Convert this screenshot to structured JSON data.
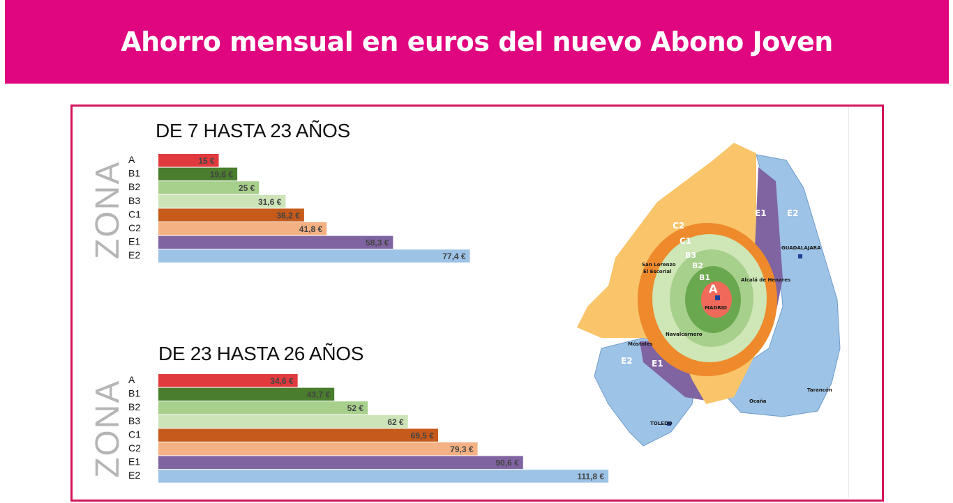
{
  "header": {
    "title": "Ahorro mensual en euros del nuevo Abono Joven"
  },
  "colors": {
    "header_bg": "#e0067f",
    "frame": "#d4145a",
    "A": "#e03a3e",
    "B1": "#4a7d2e",
    "B2": "#a7d08c",
    "B3": "#cce4b8",
    "C1": "#c55a1a",
    "C2": "#f4b183",
    "E1": "#8064a2",
    "E2": "#9dc3e6"
  },
  "charts_text": {
    "zona_label": "ZONA"
  },
  "chart_data": [
    {
      "type": "bar",
      "orientation": "horizontal",
      "title": "DE 7 HASTA 23 AÑOS",
      "categories": [
        "A",
        "B1",
        "B2",
        "B3",
        "C1",
        "C2",
        "E1",
        "E2"
      ],
      "values": [
        15,
        19.6,
        25,
        31.6,
        36.2,
        41.8,
        58.3,
        77.4
      ],
      "value_labels": [
        "15 €",
        "19,6 €",
        "25 €",
        "31,6 €",
        "36,2 €",
        "41,8 €",
        "58,3 €",
        "77,4 €"
      ],
      "ylabel": "ZONA",
      "xlim": [
        0,
        120
      ],
      "grid": false
    },
    {
      "type": "bar",
      "orientation": "horizontal",
      "title": "DE 23 HASTA 26 AÑOS",
      "categories": [
        "A",
        "B1",
        "B2",
        "B3",
        "C1",
        "C2",
        "E1",
        "E2"
      ],
      "values": [
        34.6,
        43.7,
        52,
        62,
        69.5,
        79.3,
        90.6,
        111.8
      ],
      "value_labels": [
        "34,6 €",
        "43,7 €",
        "52 €",
        "62 €",
        "69,5 €",
        "79,3 €",
        "90,6 €",
        "111,8 €"
      ],
      "ylabel": "ZONA",
      "xlim": [
        0,
        120
      ],
      "grid": false
    }
  ],
  "map": {
    "zone_labels": [
      "A",
      "B1",
      "B2",
      "B3",
      "C1",
      "C2",
      "E1",
      "E2"
    ],
    "cities": [
      "MADRID",
      "GUADALAJARA",
      "TOLEDO",
      "San Lorenzo",
      "El Escorial",
      "Alcalá de Henares",
      "Navalcarnero",
      "Móstoles",
      "Ocaña",
      "Tarancón"
    ]
  }
}
